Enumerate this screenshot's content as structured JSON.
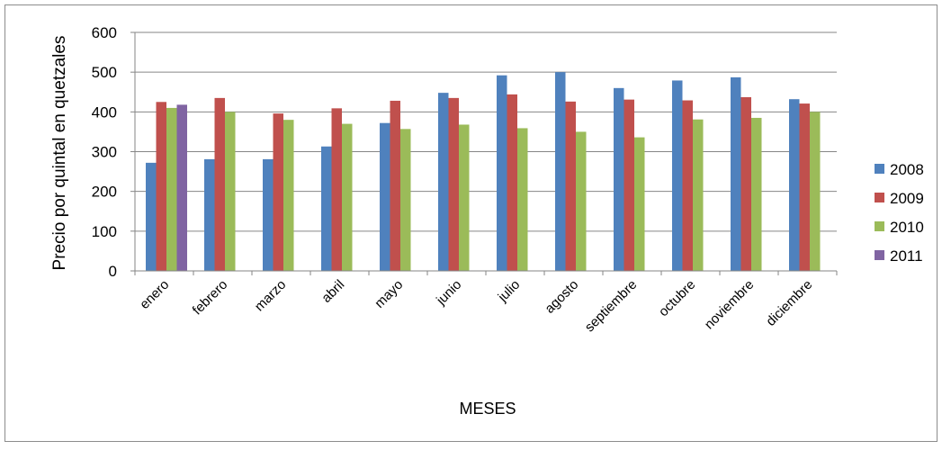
{
  "chart_data": {
    "type": "bar",
    "title": "",
    "xlabel": "MESES",
    "ylabel": "Precio por quintal en quetzales",
    "ylim": [
      0,
      600
    ],
    "yticks": [
      0,
      100,
      200,
      300,
      400,
      500,
      600
    ],
    "grid": true,
    "legend_position": "right",
    "categories": [
      "enero",
      "febrero",
      "marzo",
      "abril",
      "mayo",
      "junio",
      "julio",
      "agosto",
      "septiembre",
      "octubre",
      "noviembre",
      "diciembre"
    ],
    "series": [
      {
        "name": "2008",
        "color": "#4F81BD",
        "values": [
          272,
          281,
          281,
          313,
          372,
          448,
          492,
          500,
          460,
          479,
          487,
          432
        ]
      },
      {
        "name": "2009",
        "color": "#C0504D",
        "values": [
          425,
          435,
          396,
          409,
          428,
          435,
          444,
          426,
          431,
          429,
          437,
          421
        ]
      },
      {
        "name": "2010",
        "color": "#9BBB59",
        "values": [
          410,
          400,
          380,
          370,
          357,
          368,
          359,
          350,
          336,
          381,
          385,
          400
        ]
      },
      {
        "name": "2011",
        "color": "#8064A2",
        "values": [
          418,
          null,
          null,
          null,
          null,
          null,
          null,
          null,
          null,
          null,
          null,
          null
        ]
      }
    ]
  }
}
